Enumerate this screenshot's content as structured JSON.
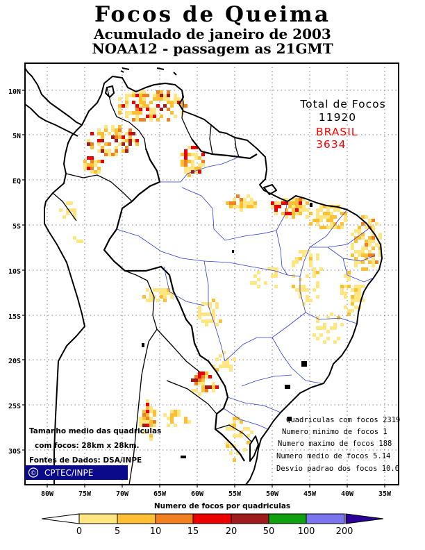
{
  "title": {
    "line1": "Focos de Queima",
    "line2": "Acumulado de janeiro de 2003",
    "line3": "NOAA12 - passagem as 21GMT"
  },
  "totals": {
    "label": "Total de Focos",
    "total": "11920",
    "country_label": "BRASIL",
    "country_total": "3634",
    "country_color": "#ff0000"
  },
  "lat_labels": [
    "10N",
    "5N",
    "EQ",
    "5S",
    "10S",
    "15S",
    "20S",
    "25S",
    "30S"
  ],
  "lon_labels": [
    "80W",
    "75W",
    "70W",
    "65W",
    "60W",
    "55W",
    "50W",
    "45W",
    "40W",
    "35W"
  ],
  "stats": [
    "Quadriculas com focos 2319",
    "Numero minimo de focos 1",
    "Numero maximo de focos 188",
    "Numero medio de focos 5.14",
    "Desvio padrao dos focos 10.0"
  ],
  "notes": {
    "line1": "Tamanho medio das quadriculas",
    "line2": "com focos: 28km x 28km.",
    "line3": "Fontes de Dados: DSA/INPE"
  },
  "badge": {
    "symbol": "©",
    "text": "CPTEC/INPE"
  },
  "legend": {
    "title": "Numero de focos por quadriculas",
    "ticks": [
      "0",
      "5",
      "10",
      "15",
      "20",
      "50",
      "100",
      "200"
    ],
    "colors": [
      "#ffe680",
      "#ffbf33",
      "#f08020",
      "#ee0000",
      "#a01c1c",
      "#10a010",
      "#7a74ee",
      "#2a0099"
    ]
  }
}
